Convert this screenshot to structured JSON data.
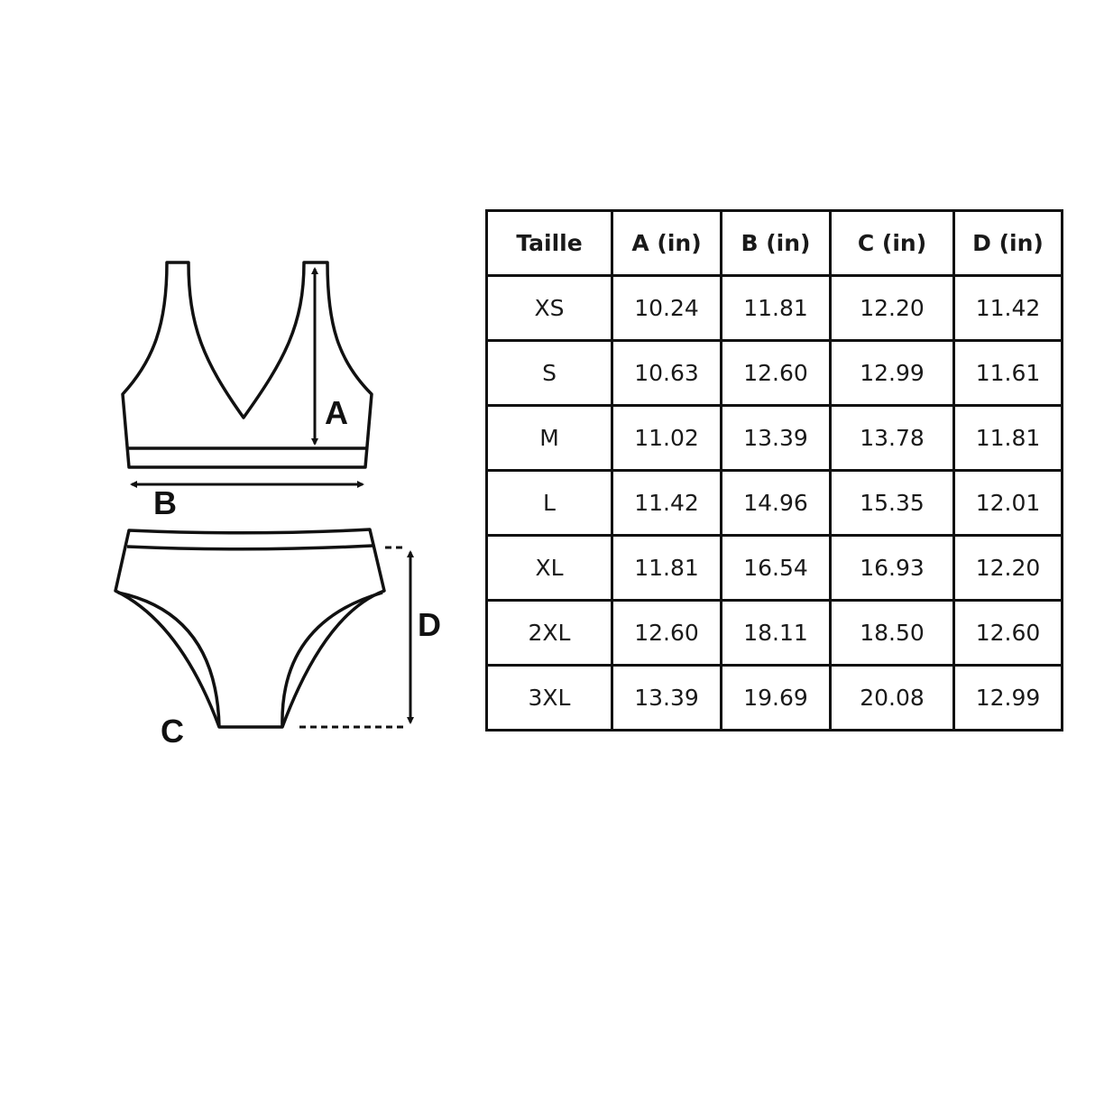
{
  "diagram": {
    "labels": {
      "a": "A",
      "b": "B",
      "c": "C",
      "d": "D"
    }
  },
  "table": {
    "headers": [
      "Taille",
      "A (in)",
      "B (in)",
      "C (in)",
      "D (in)"
    ],
    "rows": [
      [
        "XS",
        "10.24",
        "11.81",
        "12.20",
        "11.42"
      ],
      [
        "S",
        "10.63",
        "12.60",
        "12.99",
        "11.61"
      ],
      [
        "M",
        "11.02",
        "13.39",
        "13.78",
        "11.81"
      ],
      [
        "L",
        "11.42",
        "14.96",
        "15.35",
        "12.01"
      ],
      [
        "XL",
        "11.81",
        "16.54",
        "16.93",
        "12.20"
      ],
      [
        "2XL",
        "12.60",
        "18.11",
        "18.50",
        "12.60"
      ],
      [
        "3XL",
        "13.39",
        "19.69",
        "20.08",
        "12.99"
      ]
    ]
  }
}
